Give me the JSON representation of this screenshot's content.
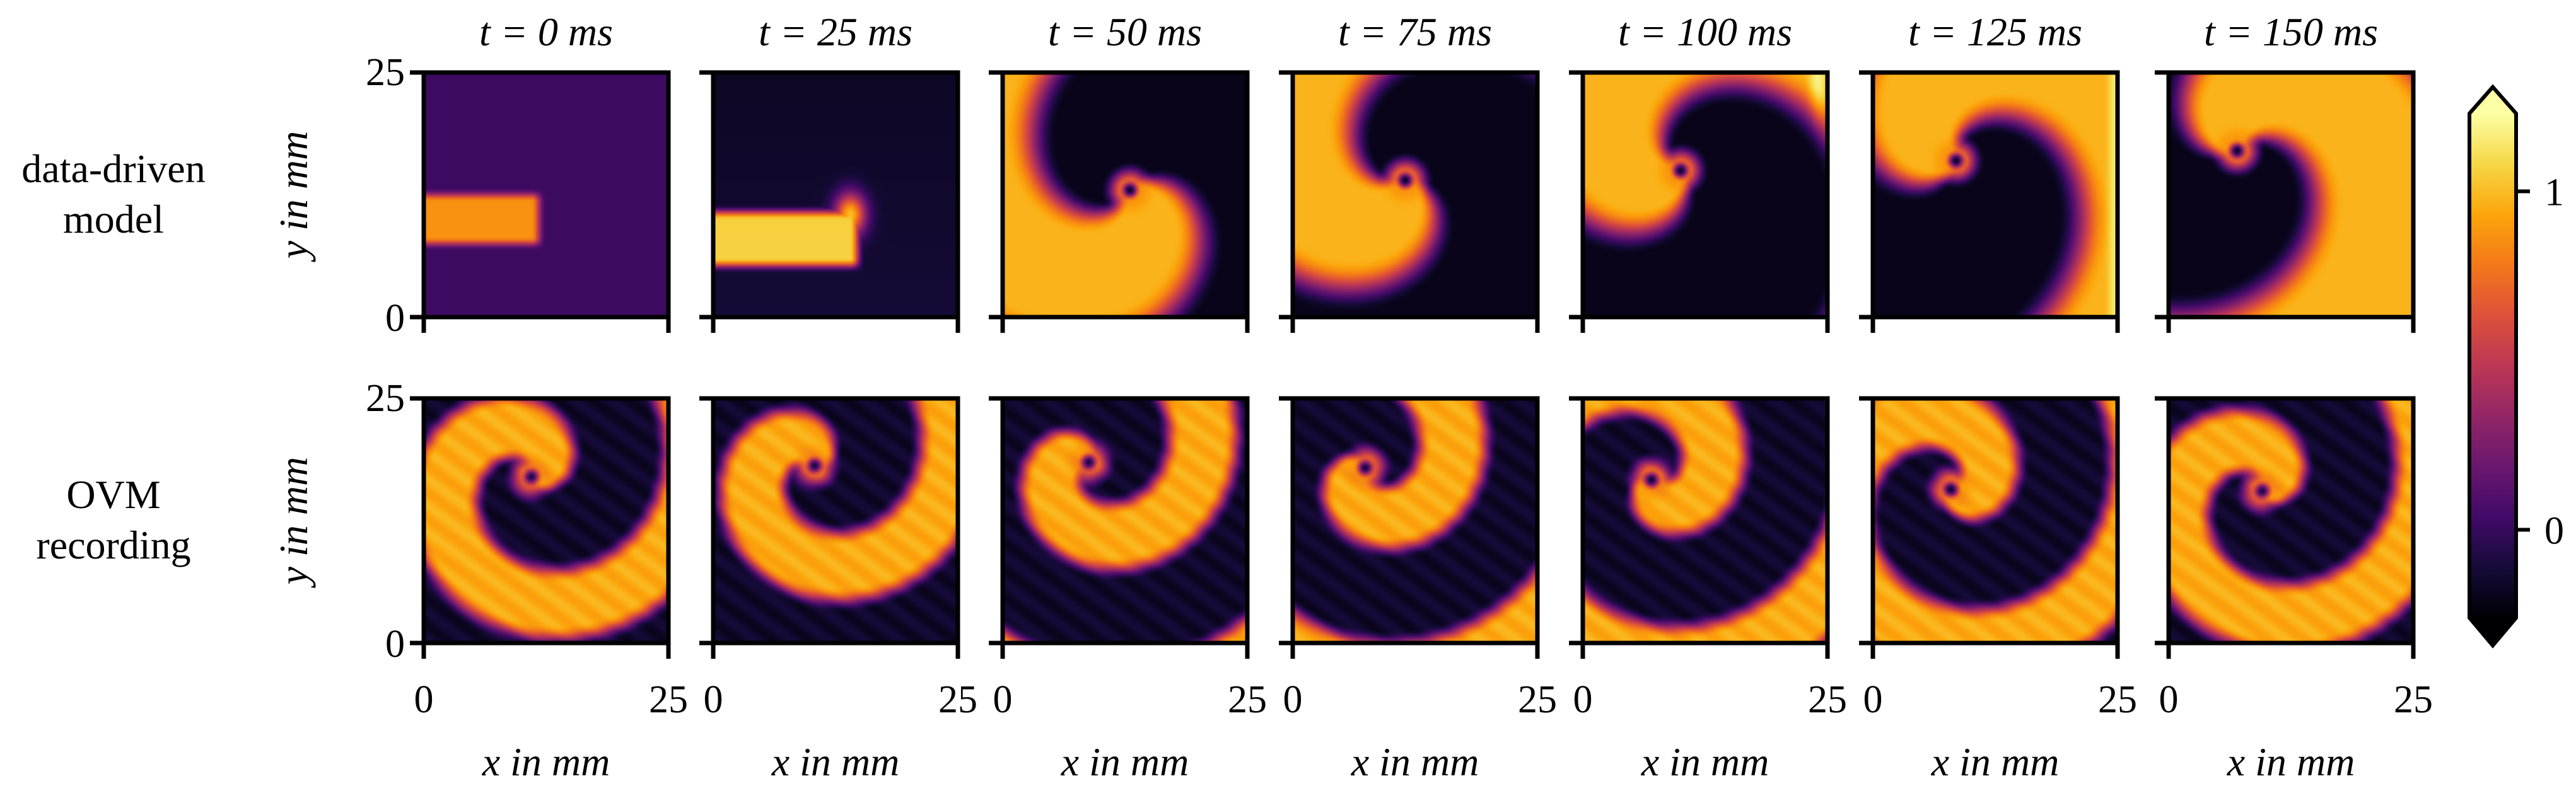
{
  "chart_data": {
    "type": "heatmap",
    "colormap": "inferno",
    "time_titles": [
      "t = 0 ms",
      "t = 25 ms",
      "t = 50 ms",
      "t = 75 ms",
      "t = 100 ms",
      "t = 125 ms",
      "t = 150 ms"
    ],
    "times_ms": [
      0,
      25,
      50,
      75,
      100,
      125,
      150
    ],
    "rows": [
      {
        "label_lines": [
          "data-driven",
          "model"
        ],
        "kind": "model"
      },
      {
        "label_lines": [
          "OVM",
          "recording"
        ],
        "kind": "recording"
      }
    ],
    "xlabel": "x in mm",
    "ylabel": "y in mm",
    "xlim": [
      0,
      25
    ],
    "ylim": [
      0,
      25
    ],
    "xticks": [
      "0",
      "25"
    ],
    "yticks": [
      "0",
      "25"
    ],
    "colorbar": {
      "ticks": [
        "0",
        "1"
      ],
      "tick_values": [
        0,
        1
      ],
      "range": [
        -0.26,
        1.23
      ],
      "extend": "both"
    }
  }
}
